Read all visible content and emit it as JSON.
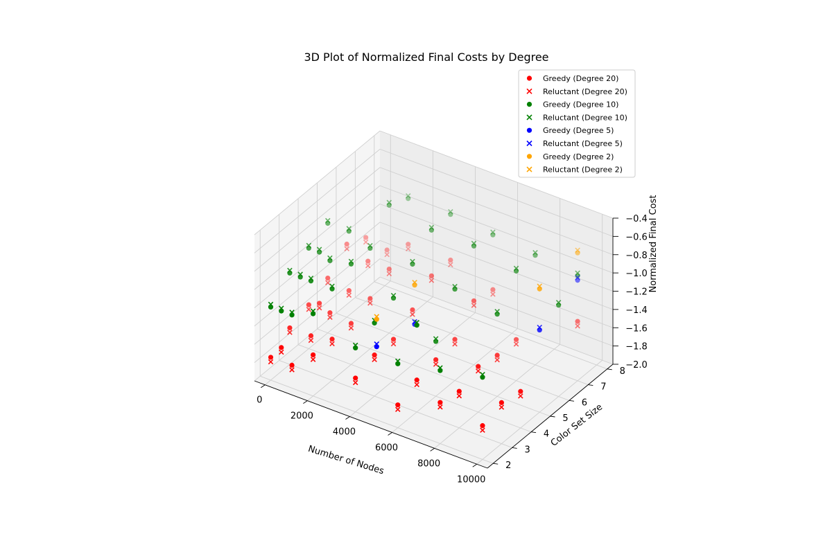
{
  "chart_data": {
    "type": "scatter",
    "projection": "3d",
    "title": "3D Plot of Normalized Final Costs by Degree",
    "xlabel": "Number of Nodes",
    "ylabel": "Color Set Size",
    "zlabel": "Normalized Final Cost",
    "xlim": [
      -500,
      10500
    ],
    "ylim": [
      1.7,
      8.3
    ],
    "zlim": [
      -2.0,
      -0.4
    ],
    "xticks": [
      0,
      2000,
      4000,
      6000,
      8000,
      10000
    ],
    "yticks": [
      2,
      3,
      4,
      5,
      6,
      7,
      8
    ],
    "zticks": [
      -2.0,
      -1.8,
      -1.6,
      -1.4,
      -1.2,
      -1.0,
      -0.8,
      -0.6,
      -0.4
    ],
    "grid": true,
    "legend_position": "upper right",
    "series": [
      {
        "name": "Greedy (Degree 20)",
        "color": "#ff0000",
        "marker": "circle",
        "points": [
          [
            0,
            2,
            -1.75
          ],
          [
            500,
            2,
            -1.6
          ],
          [
            1000,
            2,
            -1.75
          ],
          [
            2000,
            2,
            -1.55
          ],
          [
            4000,
            2,
            -1.63
          ],
          [
            6000,
            2,
            -1.75
          ],
          [
            8000,
            2,
            -1.55
          ],
          [
            10000,
            2,
            -1.63
          ],
          [
            0,
            3,
            -1.6
          ],
          [
            1000,
            3,
            -1.6
          ],
          [
            2000,
            3,
            -1.55
          ],
          [
            4000,
            3,
            -1.55
          ],
          [
            6000,
            3,
            -1.65
          ],
          [
            8000,
            3,
            -1.6
          ],
          [
            10000,
            3,
            -1.55
          ],
          [
            0,
            4,
            -1.52
          ],
          [
            500,
            4,
            -1.46
          ],
          [
            1000,
            4,
            -1.52
          ],
          [
            2000,
            4,
            -1.55
          ],
          [
            4000,
            4,
            -1.55
          ],
          [
            6000,
            4,
            -1.6
          ],
          [
            8000,
            4,
            -1.5
          ],
          [
            10000,
            4,
            -1.6
          ],
          [
            0,
            5,
            -1.4
          ],
          [
            1000,
            5,
            -1.45
          ],
          [
            2000,
            5,
            -1.45
          ],
          [
            4000,
            5,
            -1.4
          ],
          [
            6000,
            5,
            -1.55
          ],
          [
            8000,
            5,
            -1.55
          ],
          [
            0,
            6,
            -1.2
          ],
          [
            1000,
            6,
            -1.3
          ],
          [
            2000,
            6,
            -1.3
          ],
          [
            4000,
            6,
            -1.2
          ],
          [
            6000,
            6,
            -1.3
          ],
          [
            8000,
            6,
            -1.55
          ],
          [
            0,
            7,
            -1.3
          ],
          [
            1000,
            7,
            -1.35
          ],
          [
            2000,
            7,
            -1.2
          ],
          [
            4000,
            7,
            -1.2
          ],
          [
            6000,
            7,
            -1.35
          ],
          [
            10000,
            7,
            -1.35
          ]
        ]
      },
      {
        "name": "Reluctant (Degree 20)",
        "color": "#ff0000",
        "marker": "x",
        "points": [
          [
            0,
            2,
            -1.8
          ],
          [
            500,
            2,
            -1.65
          ],
          [
            1000,
            2,
            -1.8
          ],
          [
            2000,
            2,
            -1.6
          ],
          [
            4000,
            2,
            -1.68
          ],
          [
            6000,
            2,
            -1.8
          ],
          [
            8000,
            2,
            -1.6
          ],
          [
            10000,
            2,
            -1.68
          ],
          [
            0,
            3,
            -1.65
          ],
          [
            1000,
            3,
            -1.65
          ],
          [
            2000,
            3,
            -1.6
          ],
          [
            4000,
            3,
            -1.6
          ],
          [
            6000,
            3,
            -1.7
          ],
          [
            8000,
            3,
            -1.65
          ],
          [
            10000,
            3,
            -1.6
          ],
          [
            0,
            4,
            -1.57
          ],
          [
            500,
            4,
            -1.51
          ],
          [
            1000,
            4,
            -1.57
          ],
          [
            2000,
            4,
            -1.6
          ],
          [
            4000,
            4,
            -1.6
          ],
          [
            6000,
            4,
            -1.65
          ],
          [
            8000,
            4,
            -1.55
          ],
          [
            10000,
            4,
            -1.65
          ],
          [
            0,
            5,
            -1.45
          ],
          [
            1000,
            5,
            -1.5
          ],
          [
            2000,
            5,
            -1.5
          ],
          [
            4000,
            5,
            -1.45
          ],
          [
            6000,
            5,
            -1.6
          ],
          [
            8000,
            5,
            -1.6
          ],
          [
            0,
            6,
            -1.25
          ],
          [
            1000,
            6,
            -1.35
          ],
          [
            2000,
            6,
            -1.35
          ],
          [
            4000,
            6,
            -1.25
          ],
          [
            6000,
            6,
            -1.35
          ],
          [
            8000,
            6,
            -1.6
          ],
          [
            0,
            7,
            -1.35
          ],
          [
            1000,
            7,
            -1.4
          ],
          [
            2000,
            7,
            -1.25
          ],
          [
            4000,
            7,
            -1.25
          ],
          [
            6000,
            7,
            -1.4
          ],
          [
            10000,
            7,
            -1.4
          ]
        ]
      },
      {
        "name": "Greedy (Degree 10)",
        "color": "#008000",
        "marker": "circle",
        "points": [
          [
            0,
            2,
            -1.2
          ],
          [
            500,
            2,
            -1.2
          ],
          [
            1000,
            2,
            -1.2
          ],
          [
            2000,
            2,
            -1.1
          ],
          [
            4000,
            2,
            -1.3
          ],
          [
            6000,
            2,
            -1.3
          ],
          [
            8000,
            2,
            -1.2
          ],
          [
            10000,
            2,
            -1.1
          ],
          [
            0,
            3,
            -1.0
          ],
          [
            500,
            3,
            -1.0
          ],
          [
            1000,
            3,
            -1.0
          ],
          [
            2000,
            3,
            -1.0
          ],
          [
            4000,
            3,
            -1.2
          ],
          [
            6000,
            3,
            -1.05
          ],
          [
            0,
            4,
            -0.9
          ],
          [
            500,
            4,
            -0.9
          ],
          [
            1000,
            4,
            -0.95
          ],
          [
            2000,
            4,
            -0.9
          ],
          [
            4000,
            4,
            -1.1
          ],
          [
            6000,
            4,
            -1.4
          ],
          [
            0,
            5,
            -0.8
          ],
          [
            1000,
            5,
            -0.8
          ],
          [
            2000,
            5,
            -0.9
          ],
          [
            4000,
            5,
            -0.9
          ],
          [
            6000,
            5,
            -1.0
          ],
          [
            8000,
            5,
            -1.1
          ],
          [
            2000,
            6,
            -0.6
          ],
          [
            4000,
            6,
            -0.7
          ],
          [
            6000,
            6,
            -0.7
          ],
          [
            8000,
            6,
            -0.8
          ],
          [
            10000,
            6,
            -1.0
          ],
          [
            2000,
            7,
            -0.7
          ],
          [
            4000,
            7,
            -0.7
          ],
          [
            6000,
            7,
            -0.75
          ],
          [
            8000,
            7,
            -0.8
          ],
          [
            10000,
            7,
            -0.85
          ]
        ]
      },
      {
        "name": "Reluctant (Degree 10)",
        "color": "#008000",
        "marker": "x",
        "points": [
          [
            0,
            2,
            -1.17
          ],
          [
            500,
            2,
            -1.17
          ],
          [
            1000,
            2,
            -1.17
          ],
          [
            2000,
            2,
            -1.07
          ],
          [
            4000,
            2,
            -1.27
          ],
          [
            6000,
            2,
            -1.27
          ],
          [
            8000,
            2,
            -1.17
          ],
          [
            10000,
            2,
            -1.07
          ],
          [
            0,
            3,
            -0.97
          ],
          [
            500,
            3,
            -0.97
          ],
          [
            1000,
            3,
            -0.97
          ],
          [
            2000,
            3,
            -0.97
          ],
          [
            4000,
            3,
            -1.17
          ],
          [
            6000,
            3,
            -1.02
          ],
          [
            0,
            4,
            -0.87
          ],
          [
            500,
            4,
            -0.87
          ],
          [
            1000,
            4,
            -0.92
          ],
          [
            2000,
            4,
            -0.87
          ],
          [
            4000,
            4,
            -1.07
          ],
          [
            6000,
            4,
            -1.37
          ],
          [
            0,
            5,
            -0.77
          ],
          [
            1000,
            5,
            -0.77
          ],
          [
            2000,
            5,
            -0.87
          ],
          [
            4000,
            5,
            -0.87
          ],
          [
            6000,
            5,
            -0.97
          ],
          [
            8000,
            5,
            -1.07
          ],
          [
            2000,
            6,
            -0.57
          ],
          [
            4000,
            6,
            -0.67
          ],
          [
            6000,
            6,
            -0.67
          ],
          [
            8000,
            6,
            -0.77
          ],
          [
            10000,
            6,
            -0.97
          ],
          [
            2000,
            7,
            -0.67
          ],
          [
            4000,
            7,
            -0.67
          ],
          [
            6000,
            7,
            -0.72
          ],
          [
            8000,
            7,
            -0.77
          ],
          [
            10000,
            7,
            -0.82
          ]
        ]
      },
      {
        "name": "Greedy (Degree 5)",
        "color": "#0000ff",
        "marker": "circle",
        "points": [
          [
            5000,
            2,
            -1.2
          ],
          [
            5000,
            4,
            -1.3
          ],
          [
            10000,
            5,
            -1.1
          ],
          [
            10000,
            7,
            -0.9
          ]
        ]
      },
      {
        "name": "Reluctant (Degree 5)",
        "color": "#0000ff",
        "marker": "x",
        "points": [
          [
            5000,
            2,
            -1.17
          ],
          [
            5000,
            4,
            -1.27
          ],
          [
            10000,
            5,
            -1.07
          ],
          [
            10000,
            7,
            -0.87
          ]
        ]
      },
      {
        "name": "Greedy (Degree 2)",
        "color": "#ffa500",
        "marker": "circle",
        "points": [
          [
            5000,
            2,
            -0.9
          ],
          [
            5000,
            4,
            -0.87
          ],
          [
            10000,
            5,
            -0.65
          ],
          [
            10000,
            7,
            -0.6
          ]
        ]
      },
      {
        "name": "Reluctant (Degree 2)",
        "color": "#ffa500",
        "marker": "x",
        "points": [
          [
            5000,
            2,
            -0.87
          ],
          [
            5000,
            4,
            -0.84
          ],
          [
            10000,
            5,
            -0.62
          ],
          [
            10000,
            7,
            -0.57
          ]
        ]
      }
    ]
  }
}
